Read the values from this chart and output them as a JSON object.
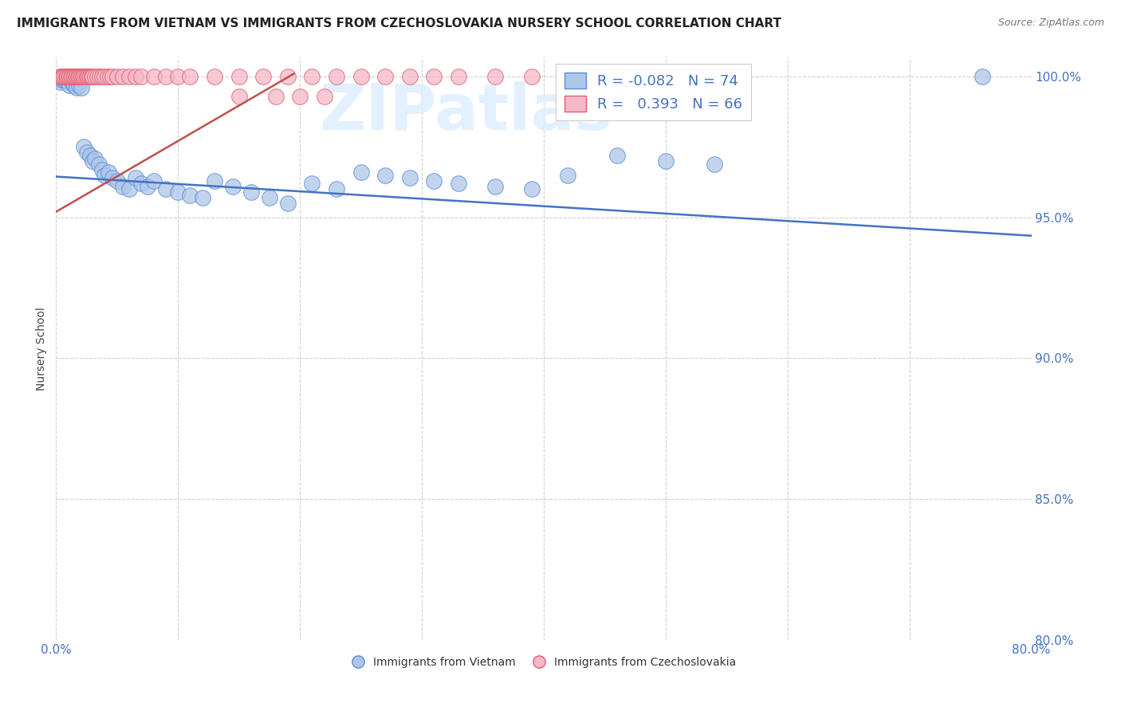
{
  "title": "IMMIGRANTS FROM VIETNAM VS IMMIGRANTS FROM CZECHOSLOVAKIA NURSERY SCHOOL CORRELATION CHART",
  "source": "Source: ZipAtlas.com",
  "ylabel": "Nursery School",
  "xlim": [
    0.0,
    0.8
  ],
  "ylim": [
    0.868,
    1.007
  ],
  "blue_color": "#aec6e8",
  "pink_color": "#f4b8c8",
  "blue_edge_color": "#5b8dd9",
  "pink_edge_color": "#e06070",
  "blue_line_color": "#4472c4",
  "pink_line_color": "#c0504d",
  "blue_line_x": [
    0.0,
    0.8
  ],
  "blue_line_y": [
    0.9645,
    0.9435
  ],
  "pink_line_x": [
    0.0,
    0.195
  ],
  "pink_line_y": [
    0.952,
    1.001
  ],
  "grid_color": "#cccccc",
  "background_color": "#ffffff",
  "title_fontsize": 11,
  "tick_fontsize": 11,
  "watermark_text": "ZIPatlas",
  "watermark_color": "#ddeeff",
  "blue_x": [
    0.003,
    0.004,
    0.005,
    0.006,
    0.007,
    0.008,
    0.009,
    0.01,
    0.011,
    0.012,
    0.013,
    0.015,
    0.017,
    0.019,
    0.021,
    0.023,
    0.025,
    0.028,
    0.03,
    0.032,
    0.035,
    0.038,
    0.04,
    0.043,
    0.046,
    0.05,
    0.055,
    0.06,
    0.065,
    0.07,
    0.075,
    0.08,
    0.09,
    0.1,
    0.11,
    0.12,
    0.13,
    0.145,
    0.16,
    0.175,
    0.19,
    0.21,
    0.23,
    0.25,
    0.27,
    0.29,
    0.31,
    0.33,
    0.36,
    0.39,
    0.42,
    0.46,
    0.5,
    0.54,
    0.76
  ],
  "blue_y": [
    0.999,
    0.998,
    0.999,
    1.0,
    0.999,
    1.0,
    0.999,
    0.998,
    0.997,
    0.999,
    0.998,
    0.997,
    0.996,
    0.997,
    0.996,
    0.975,
    0.973,
    0.972,
    0.97,
    0.971,
    0.969,
    0.967,
    0.965,
    0.966,
    0.964,
    0.963,
    0.961,
    0.96,
    0.964,
    0.962,
    0.961,
    0.963,
    0.96,
    0.959,
    0.958,
    0.957,
    0.963,
    0.961,
    0.959,
    0.957,
    0.955,
    0.962,
    0.96,
    0.966,
    0.965,
    0.964,
    0.963,
    0.962,
    0.961,
    0.96,
    0.965,
    0.972,
    0.97,
    0.969,
    1.0
  ],
  "pink_x": [
    0.003,
    0.004,
    0.005,
    0.006,
    0.007,
    0.008,
    0.009,
    0.01,
    0.011,
    0.012,
    0.013,
    0.014,
    0.015,
    0.016,
    0.017,
    0.018,
    0.019,
    0.02,
    0.021,
    0.022,
    0.023,
    0.024,
    0.025,
    0.026,
    0.027,
    0.028,
    0.029,
    0.03,
    0.032,
    0.034,
    0.036,
    0.038,
    0.04,
    0.042,
    0.044,
    0.046,
    0.05,
    0.055,
    0.06,
    0.065,
    0.07,
    0.08,
    0.09,
    0.1,
    0.11,
    0.13,
    0.15,
    0.17,
    0.19,
    0.21,
    0.23,
    0.25,
    0.27,
    0.29,
    0.31,
    0.33,
    0.36,
    0.39,
    0.42,
    0.45,
    0.49,
    0.53,
    0.15,
    0.18,
    0.2,
    0.22
  ],
  "pink_y": [
    1.0,
    1.0,
    1.0,
    1.0,
    1.0,
    1.0,
    1.0,
    1.0,
    1.0,
    1.0,
    1.0,
    1.0,
    1.0,
    1.0,
    1.0,
    1.0,
    1.0,
    1.0,
    1.0,
    1.0,
    1.0,
    1.0,
    1.0,
    1.0,
    1.0,
    1.0,
    1.0,
    1.0,
    1.0,
    1.0,
    1.0,
    1.0,
    1.0,
    1.0,
    1.0,
    1.0,
    1.0,
    1.0,
    1.0,
    1.0,
    1.0,
    1.0,
    1.0,
    1.0,
    1.0,
    1.0,
    1.0,
    1.0,
    1.0,
    1.0,
    1.0,
    1.0,
    1.0,
    1.0,
    1.0,
    1.0,
    1.0,
    1.0,
    1.0,
    1.0,
    1.0,
    1.0,
    0.993,
    0.993,
    0.993,
    0.993
  ]
}
